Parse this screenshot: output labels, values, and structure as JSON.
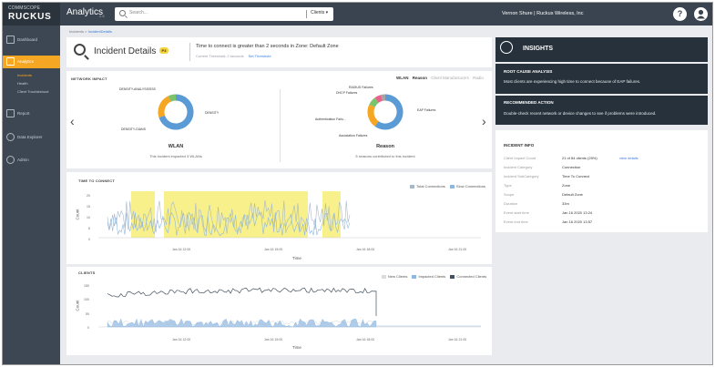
{
  "brand": {
    "line1": "COMMSCOPE",
    "line2": "RUCKUS"
  },
  "app": {
    "title": "Analytics",
    "version": "2.6"
  },
  "search": {
    "placeholder": "Search...",
    "scope": "Clients"
  },
  "user": {
    "name": "Vernon Shure | Ruckus Wireless, Inc"
  },
  "sidebar": {
    "items": [
      {
        "label": "Dashboard"
      },
      {
        "label": "Analytics"
      },
      {
        "label": "Report"
      },
      {
        "label": "Data Explorer"
      },
      {
        "label": "Admin"
      }
    ],
    "sub_items": [
      {
        "label": "Incidents"
      },
      {
        "label": "Health"
      },
      {
        "label": "Client Troubleshoot"
      }
    ]
  },
  "breadcrumb": {
    "parent": "Incidents",
    "sep": ">",
    "current": "IncidentDetails"
  },
  "incident": {
    "title": "Incident Details",
    "priority": "P3",
    "description": "Time to connect is greater than 2 seconds in Zone: Default Zone",
    "threshold": "Current Threshold: 2 seconds",
    "set_threshold": "Set Threshold"
  },
  "network_impact": {
    "title": "NETWORK IMPACT",
    "tabs": [
      "WLAN",
      "Reason",
      "Client Manufacturers",
      "Radio"
    ],
    "wlan": {
      "name": "WLAN",
      "note": "This incident impacted 3 WLANs",
      "labels": [
        "DENSITY-ANALYSISSSS",
        "DENSITY",
        "DENSITY-GIANS"
      ],
      "slices": [
        {
          "value": 70,
          "color": "#5b9bd5"
        },
        {
          "value": 23,
          "color": "#f5a623"
        },
        {
          "value": 7,
          "color": "#7cc36e"
        }
      ]
    },
    "reason": {
      "name": "Reason",
      "note": "5 reasons contributed to this incident",
      "labels": [
        "RADIUS Failures",
        "DHCP Failures",
        "EAP Failures",
        "Authentication Failu...",
        "Association Failures"
      ],
      "slices": [
        {
          "value": 60,
          "color": "#5b9bd5"
        },
        {
          "value": 22,
          "color": "#f5a623"
        },
        {
          "value": 8,
          "color": "#7cc36e"
        },
        {
          "value": 6,
          "color": "#e8628b"
        },
        {
          "value": 4,
          "color": "#a5a5a5"
        }
      ]
    }
  },
  "time_to_connect": {
    "title": "TIME TO CONNECT",
    "legend": [
      "Total Connections",
      "Slow Connections"
    ],
    "y_ticks": [
      "20",
      "15",
      "10",
      "5",
      "0"
    ],
    "x_ticks": [
      "Jan 16 12:00",
      "Jan 16 15:00",
      "Jan 16 18:00",
      "Jan 16 21:00"
    ],
    "ylabel": "Count",
    "xlabel": "Time"
  },
  "clients": {
    "title": "CLIENTS",
    "legend": [
      "New Clients",
      "Impacted Clients",
      "Connected Clients"
    ],
    "y_ticks": [
      "150",
      "100",
      "50",
      "0"
    ],
    "x_ticks": [
      "Jan 16 12:00",
      "Jan 16 15:00",
      "Jan 16 18:00",
      "Jan 16 21:00"
    ],
    "ylabel": "Count",
    "xlabel": "Time"
  },
  "insights": {
    "title": "INSIGHTS",
    "root_cause_title": "ROOT CAUSE ANALYSIS",
    "root_cause_text": "Most clients are experiencing high time to connect because of EAP failures.",
    "action_title": "RECOMMENDED ACTION",
    "action_text": "Double-check recent network or device changes to see if problems were introduced.",
    "info_title": "INCIDENT INFO",
    "rows": [
      {
        "key": "Client Impact Count",
        "value": "21 of 84 clients (25%)",
        "link": "view details"
      },
      {
        "key": "Incident Category",
        "value": "Connection"
      },
      {
        "key": "Incident SubCategory",
        "value": "Time To Connect"
      },
      {
        "key": "Type",
        "value": "Zone"
      },
      {
        "key": "Scope",
        "value": "Default Zone"
      },
      {
        "key": "Duration",
        "value": "33m"
      },
      {
        "key": "Event start time",
        "value": "Jan 16 2020 13:24"
      },
      {
        "key": "Event end time",
        "value": "Jan 16 2020 13:57"
      }
    ]
  },
  "colors": {
    "accent": "#f5a623",
    "sidebar": "#3d4754",
    "topbar": "#3a4450",
    "insight_dark": "#26313c",
    "highlight": "#f7f08b",
    "series_light": "#8fb7e0",
    "series_gray": "#a8b8c8",
    "series_dark": "#44525f"
  }
}
